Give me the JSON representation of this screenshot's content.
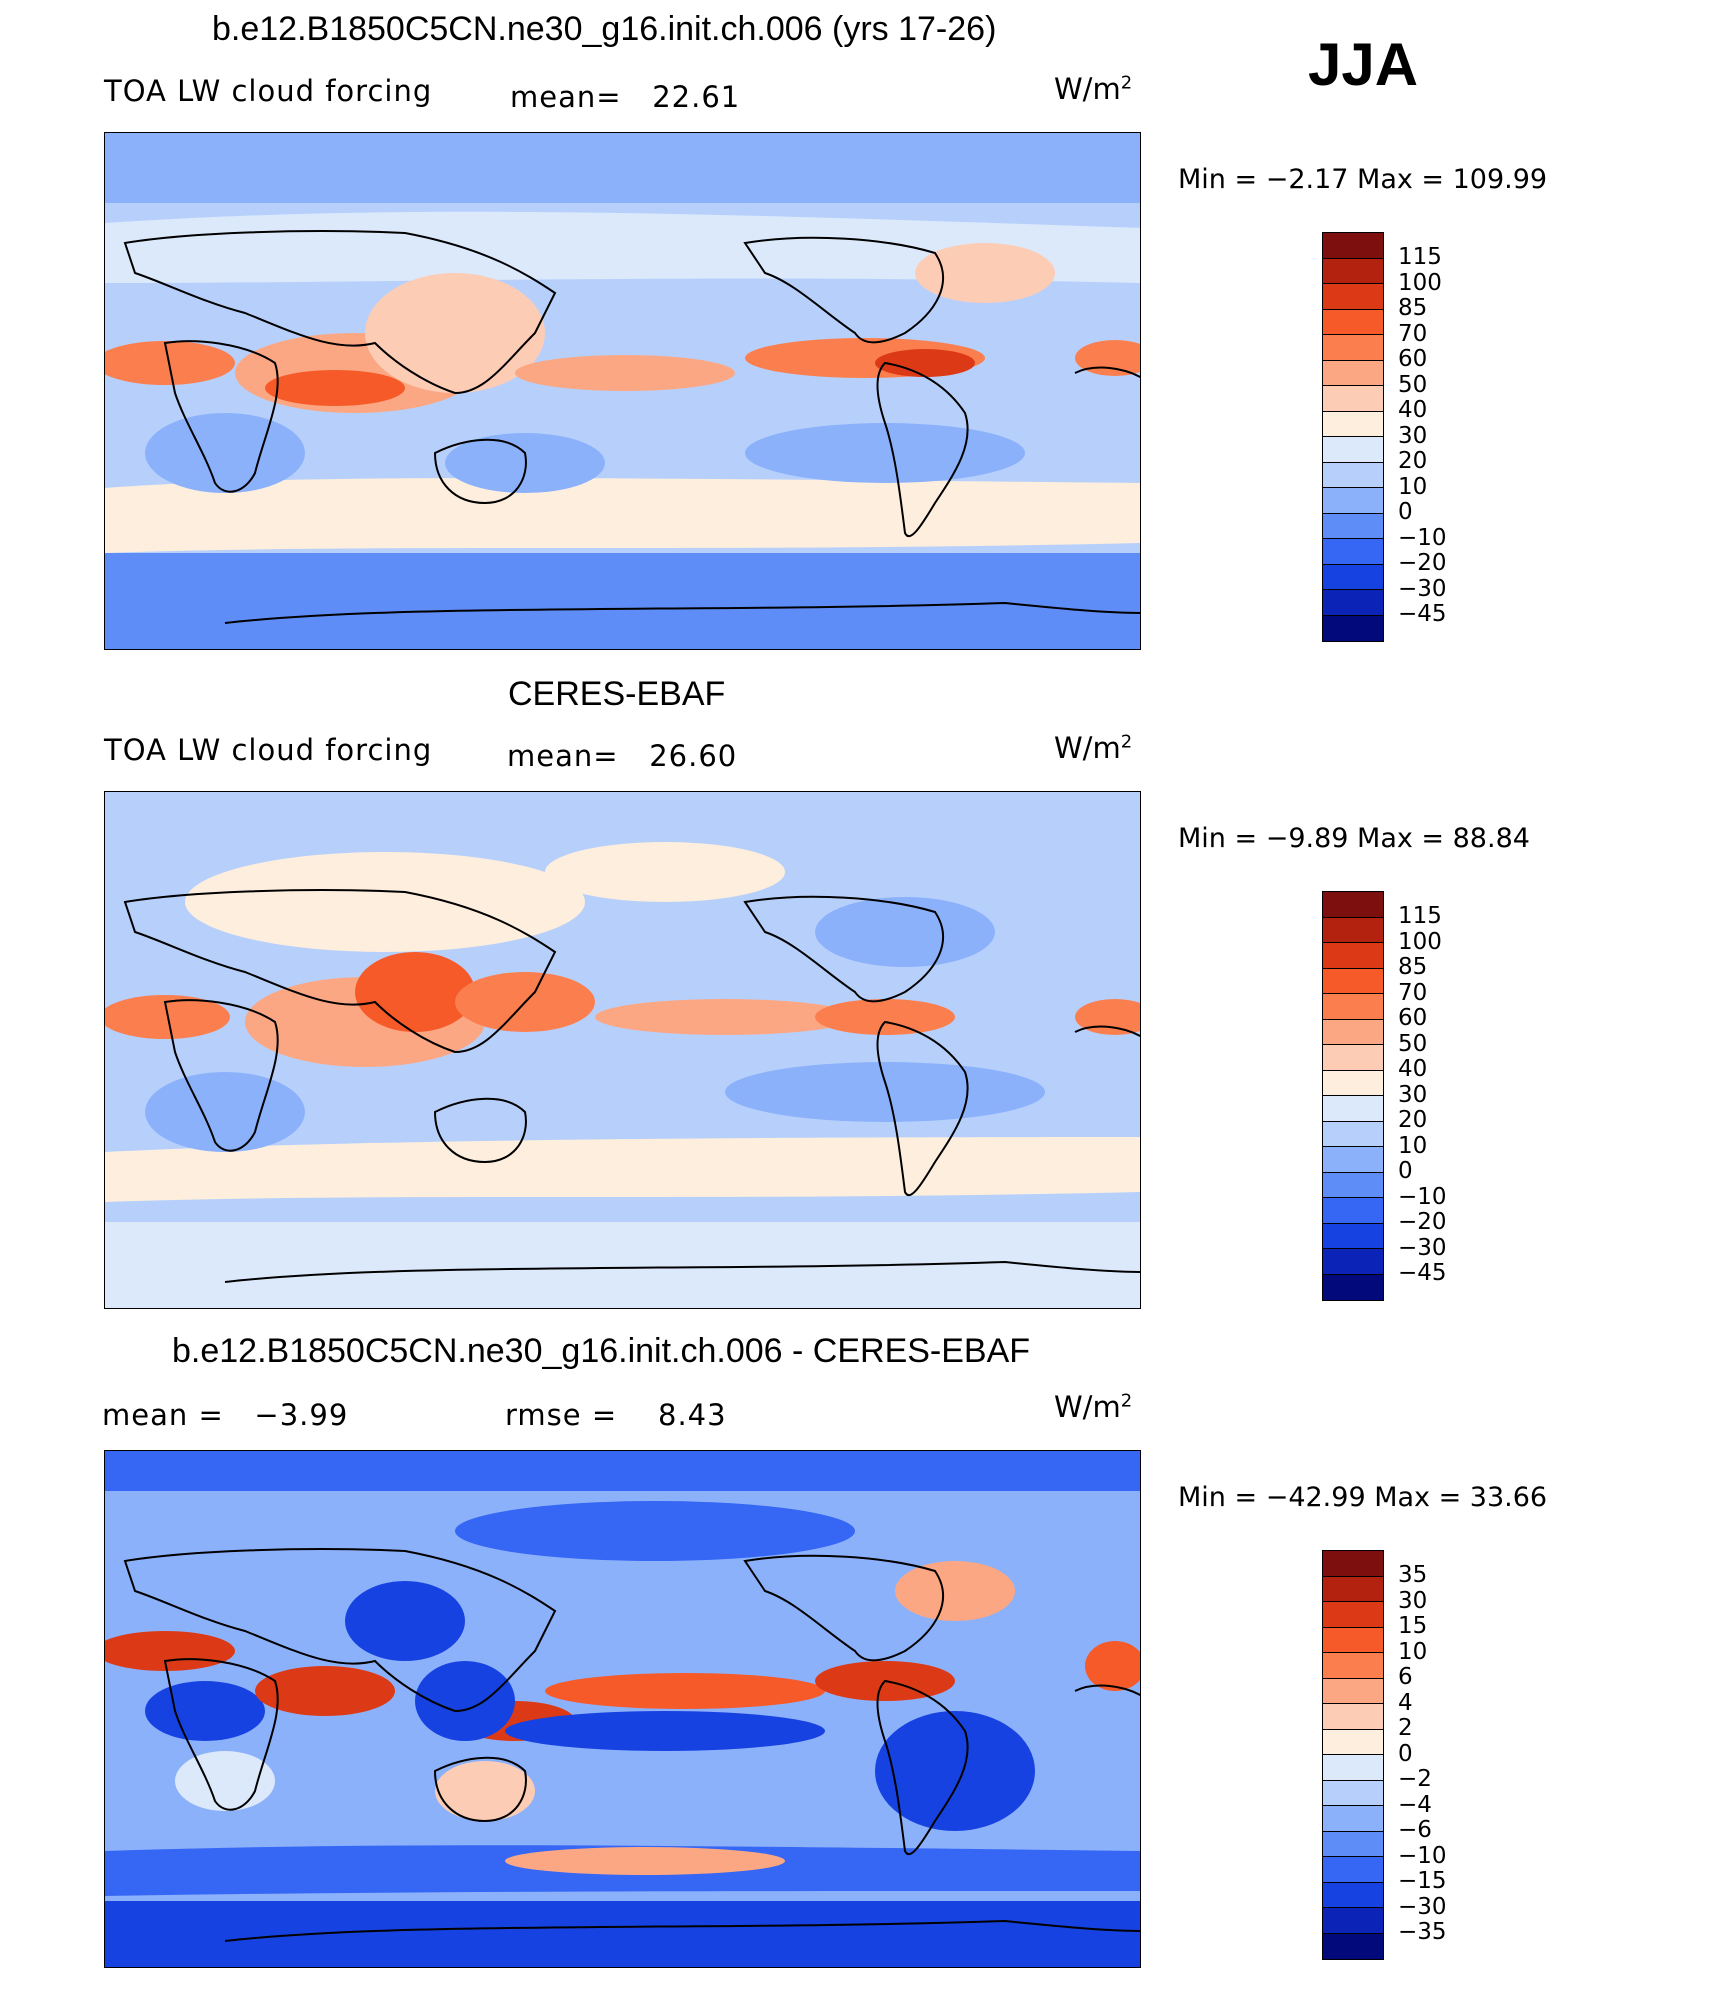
{
  "season": "JJA",
  "units_base": "W/m",
  "units_exp": "2",
  "panels": [
    {
      "title": "b.e12.B1850C5CN.ne30_g16.init.ch.006 (yrs 17-26)",
      "left_label": "TOA LW cloud forcing",
      "stat_label": "mean=",
      "stat_value": "22.61",
      "min_text": "Min =  −2.17 Max =  109.99",
      "colorbar": {
        "colors": [
          "#7e0f0f",
          "#b2220e",
          "#dc3a16",
          "#f65a28",
          "#fb7f4e",
          "#fca783",
          "#fdccb5",
          "#fdeedd",
          "#dbe9fb",
          "#b7d0fb",
          "#8cb1fb",
          "#5e8df8",
          "#3566f4",
          "#1742e2",
          "#0b23b6",
          "#02097a"
        ],
        "ticks": [
          "115",
          "100",
          "85",
          "70",
          "60",
          "50",
          "40",
          "30",
          "20",
          "10",
          "0",
          "−10",
          "−20",
          "−30",
          "−45"
        ]
      }
    },
    {
      "title": "CERES-EBAF",
      "left_label": "TOA LW cloud forcing",
      "stat_label": "mean=",
      "stat_value": "26.60",
      "min_text": "Min =  −9.89 Max =   88.84",
      "colorbar": {
        "colors": [
          "#7e0f0f",
          "#b2220e",
          "#dc3a16",
          "#f65a28",
          "#fb7f4e",
          "#fca783",
          "#fdccb5",
          "#fdeedd",
          "#dbe9fb",
          "#b7d0fb",
          "#8cb1fb",
          "#5e8df8",
          "#3566f4",
          "#1742e2",
          "#0b23b6",
          "#02097a"
        ],
        "ticks": [
          "115",
          "100",
          "85",
          "70",
          "60",
          "50",
          "40",
          "30",
          "20",
          "10",
          "0",
          "−10",
          "−20",
          "−30",
          "−45"
        ]
      }
    },
    {
      "title": "b.e12.B1850C5CN.ne30_g16.init.ch.006 - CERES-EBAF",
      "left_label": "mean =",
      "left_value": "−3.99",
      "stat_label": "rmse =",
      "stat_value": "8.43",
      "min_text": "Min = −42.99 Max =   33.66",
      "colorbar": {
        "colors": [
          "#7e0f0f",
          "#b2220e",
          "#dc3a16",
          "#f65a28",
          "#fb7f4e",
          "#fca783",
          "#fdccb5",
          "#fdeedd",
          "#dbe9fb",
          "#b7d0fb",
          "#8cb1fb",
          "#5e8df8",
          "#3566f4",
          "#1742e2",
          "#0b23b6",
          "#02097a"
        ],
        "ticks": [
          "35",
          "30",
          "15",
          "10",
          "6",
          "4",
          "2",
          "0",
          "−2",
          "−4",
          "−6",
          "−10",
          "−15",
          "−30",
          "−35"
        ]
      }
    }
  ]
}
